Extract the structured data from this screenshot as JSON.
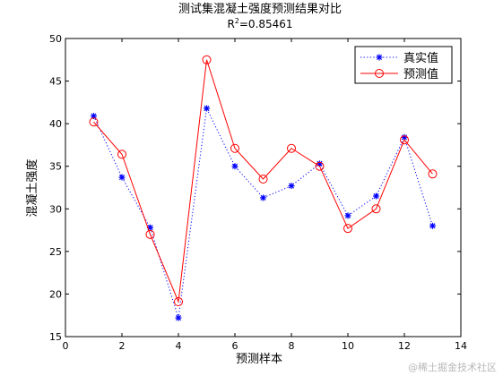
{
  "chart_data": {
    "type": "line",
    "title": "测试集混凝土强度预测结果对比",
    "subtitle_prefix": "R",
    "subtitle_sup": "2",
    "subtitle_value": "=0.85461",
    "xlabel": "预测样本",
    "ylabel": "混凝土强度",
    "xlim": [
      0,
      14
    ],
    "ylim": [
      15,
      50
    ],
    "xticks": [
      0,
      2,
      4,
      6,
      8,
      10,
      12,
      14
    ],
    "yticks": [
      15,
      20,
      25,
      30,
      35,
      40,
      45,
      50
    ],
    "legend_position": "top-right",
    "x": [
      1,
      2,
      3,
      4,
      5,
      6,
      7,
      8,
      9,
      10,
      11,
      12,
      13
    ],
    "series": [
      {
        "name": "真实值",
        "color": "#0000ff",
        "line_style": "dotted",
        "marker": "asterisk",
        "values": [
          40.9,
          33.7,
          27.8,
          17.2,
          41.8,
          35.0,
          31.3,
          32.7,
          35.3,
          29.2,
          31.5,
          38.4,
          28.0
        ]
      },
      {
        "name": "预测值",
        "color": "#ff0000",
        "line_style": "solid",
        "marker": "circle",
        "values": [
          40.2,
          36.4,
          27.0,
          19.1,
          47.5,
          37.1,
          33.5,
          37.1,
          35.0,
          27.7,
          30.0,
          38.1,
          34.1
        ]
      }
    ]
  },
  "watermark": "@稀土掘金技术社区"
}
